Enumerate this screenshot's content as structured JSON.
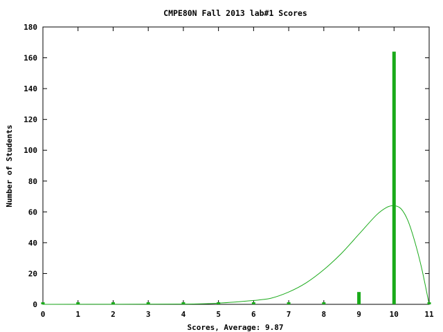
{
  "chart_data": {
    "type": "bar",
    "title": "CMPE80N Fall 2013 lab#1 Scores",
    "xlabel": "Scores, Average: 9.87",
    "ylabel": "Number of Students",
    "xlim": [
      0,
      11
    ],
    "ylim": [
      0,
      180
    ],
    "x_ticks": [
      "0",
      "1",
      "2",
      "3",
      "4",
      "5",
      "6",
      "7",
      "8",
      "9",
      "10",
      "11"
    ],
    "y_ticks": [
      "0",
      "20",
      "40",
      "60",
      "80",
      "100",
      "120",
      "140",
      "160",
      "180"
    ],
    "grid": false,
    "legend": "none",
    "bar_color": "#1aaa1a",
    "curve_color": "#1aaa1a",
    "series": [
      {
        "type": "bar",
        "x": [
          0,
          1,
          2,
          3,
          4,
          5,
          6,
          7,
          8,
          9,
          10,
          11
        ],
        "values": [
          0,
          0,
          0,
          0,
          0,
          0,
          1,
          1,
          0,
          8,
          164,
          0
        ]
      },
      {
        "type": "line",
        "x": [
          0,
          4,
          5,
          6,
          6.5,
          7,
          7.5,
          8,
          8.5,
          9,
          9.5,
          9.8,
          10,
          10.2,
          10.4,
          10.6,
          10.8,
          11
        ],
        "values": [
          0,
          0.2,
          0.8,
          2.5,
          4,
          8,
          14,
          22.5,
          33,
          45.5,
          58,
          63,
          64,
          62,
          54,
          40,
          22,
          0
        ]
      }
    ]
  }
}
